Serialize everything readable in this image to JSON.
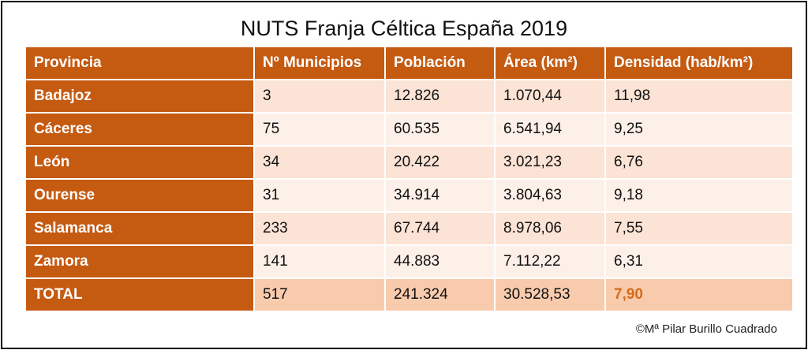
{
  "header": {
    "title": "NUTS Franja Céltica España 2019"
  },
  "table": {
    "columns": [
      "Provincia",
      "Nº Municipios",
      "Población",
      "Área (km²)",
      "Densidad (hab/km²)"
    ],
    "rows": [
      [
        "Badajoz",
        "3",
        "12.826",
        "1.070,44",
        "11,98"
      ],
      [
        "Cáceres",
        "75",
        "60.535",
        "6.541,94",
        "9,25"
      ],
      [
        "León",
        "34",
        "20.422",
        "3.021,23",
        "6,76"
      ],
      [
        "Ourense",
        "31",
        "34.914",
        "3.804,63",
        "9,18"
      ],
      [
        "Salamanca",
        "233",
        "67.744",
        "8.978,06",
        "7,55"
      ],
      [
        "Zamora",
        "141",
        "44.883",
        "7.112,22",
        "6,31"
      ],
      [
        "TOTAL",
        "517",
        "241.324",
        "30.528,53",
        "7,90"
      ]
    ]
  },
  "footer": {
    "credit": "©Mª Pilar Burillo Cuadrado"
  }
}
